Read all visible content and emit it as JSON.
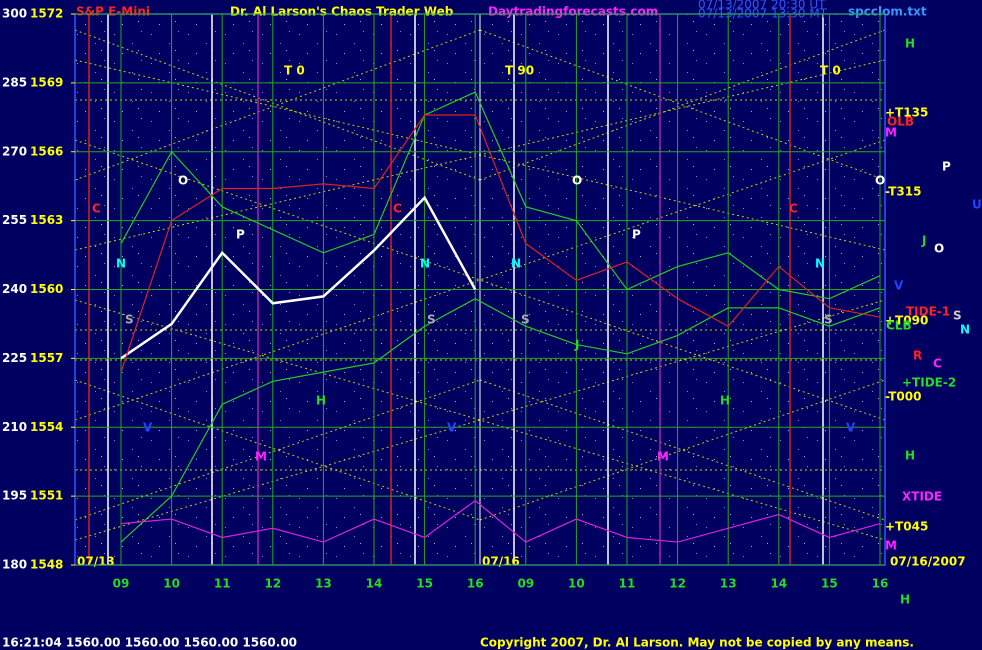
{
  "chart_data": {
    "type": "line",
    "symbol": "S&P E-Mini",
    "title": "Dr. Al Larson's Chaos Trader Web",
    "site": "Daytradingforecasts.com",
    "stamp_ut": "07/13/2007 20:30 UT",
    "stamp_mt": "07/13/2007 13:30 MT",
    "file": "spcclom.txt",
    "status": "16:21:04  1560.00 1560.00 1560.00 1560.00",
    "copyright": "Copyright 2007, Dr. Al Larson. May not be copied by any means.",
    "dates": [
      "07/13",
      "07/16",
      "07/16/2007"
    ],
    "categories": [
      "09",
      "10",
      "11",
      "12",
      "13",
      "14",
      "15",
      "16",
      "09",
      "10",
      "11",
      "12",
      "13",
      "14",
      "15",
      "16"
    ],
    "ylim": [
      180,
      300
    ],
    "yticks": [
      180,
      195,
      210,
      225,
      240,
      255,
      270,
      285,
      300
    ],
    "y2lim": [
      1548,
      1572
    ],
    "y2ticks": [
      1548,
      1551,
      1554,
      1557,
      1560,
      1563,
      1566,
      1569,
      1572
    ],
    "grid": true,
    "series": [
      {
        "color": "#ffffff",
        "axis": "y2",
        "values": [
          1557,
          1558.5,
          1561.6,
          1559.4,
          1559.7,
          1561.7,
          1564,
          1560,
          null,
          null,
          null,
          null,
          null,
          null,
          null,
          null
        ]
      },
      {
        "color": "#22cc22",
        "values": [
          250,
          270,
          258,
          253,
          248,
          252,
          278,
          283,
          258,
          255,
          240,
          245,
          248,
          240,
          238,
          243
        ]
      },
      {
        "color": "#22cc22",
        "values": [
          185,
          195,
          215,
          220,
          222,
          224,
          232,
          238,
          232,
          228,
          226,
          230,
          236,
          236,
          232,
          236
        ]
      },
      {
        "color": "#dd2222",
        "values": [
          222,
          255,
          262,
          262,
          263,
          262,
          278,
          278,
          250,
          242,
          246,
          238,
          232,
          245,
          236,
          234
        ]
      },
      {
        "color": "#dd22dd",
        "values": [
          189,
          190,
          186,
          188,
          185,
          190,
          186,
          194,
          185,
          190,
          186,
          185,
          188,
          191,
          186,
          189
        ]
      }
    ],
    "annotations": [
      {
        "text": "T 0",
        "color": "#ffff00"
      },
      {
        "text": "T 90",
        "color": "#ffff00"
      },
      {
        "text": "T 0",
        "color": "#ffff00"
      },
      {
        "text": "O",
        "color": "#ffffff"
      },
      {
        "text": "O",
        "color": "#ffffff"
      },
      {
        "text": "O",
        "color": "#ffffff"
      },
      {
        "text": "C",
        "color": "#ff2222"
      },
      {
        "text": "C",
        "color": "#ff2222"
      },
      {
        "text": "C",
        "color": "#ff2222"
      },
      {
        "text": "P",
        "color": "#ffffff"
      },
      {
        "text": "P",
        "color": "#ffffff"
      },
      {
        "text": "N",
        "color": "#00ffff"
      },
      {
        "text": "N",
        "color": "#00ffff"
      },
      {
        "text": "N",
        "color": "#00ffff"
      },
      {
        "text": "N",
        "color": "#00ffff"
      },
      {
        "text": "S",
        "color": "#aaaaaa"
      },
      {
        "text": "S",
        "color": "#aaaaaa"
      },
      {
        "text": "S",
        "color": "#aaaaaa"
      },
      {
        "text": "S",
        "color": "#aaaaaa"
      },
      {
        "text": "H",
        "color": "#22dd22"
      },
      {
        "text": "H",
        "color": "#22dd22"
      },
      {
        "text": "M",
        "color": "#ff22ff"
      },
      {
        "text": "M",
        "color": "#ff22ff"
      },
      {
        "text": "V",
        "color": "#2244ff"
      },
      {
        "text": "V",
        "color": "#2244ff"
      },
      {
        "text": "V",
        "color": "#2244ff"
      },
      {
        "text": "J",
        "color": "#22dd22"
      },
      {
        "text": "H",
        "color": "#22dd22"
      },
      {
        "text": "+T135",
        "color": "#ffff00"
      },
      {
        "text": "OLB",
        "color": "#ff2222"
      },
      {
        "text": "M",
        "color": "#ff22ff"
      },
      {
        "text": "P",
        "color": "#ffffff"
      },
      {
        "text": "-T315",
        "color": "#ffff00"
      },
      {
        "text": "U",
        "color": "#2244ff"
      },
      {
        "text": "J",
        "color": "#22dd22"
      },
      {
        "text": "O",
        "color": "#ffffff"
      },
      {
        "text": "V",
        "color": "#2244ff"
      },
      {
        "text": "TIDE-1",
        "color": "#ff2222"
      },
      {
        "text": "S",
        "color": "#cccccc"
      },
      {
        "text": "+T090",
        "color": "#ffff00"
      },
      {
        "text": "CLB",
        "color": "#22dd22"
      },
      {
        "text": "N",
        "color": "#00ffff"
      },
      {
        "text": "R",
        "color": "#ff2222"
      },
      {
        "text": "C",
        "color": "#ff22ff"
      },
      {
        "text": "+TIDE-2",
        "color": "#22dd22"
      },
      {
        "text": "-T000",
        "color": "#ffff00"
      },
      {
        "text": "H",
        "color": "#22dd22"
      },
      {
        "text": "XTIDE",
        "color": "#ff22ff"
      },
      {
        "text": "+T045",
        "color": "#ffff00"
      },
      {
        "text": "M",
        "color": "#ff22ff"
      },
      {
        "text": "H",
        "color": "#22dd22"
      }
    ]
  }
}
